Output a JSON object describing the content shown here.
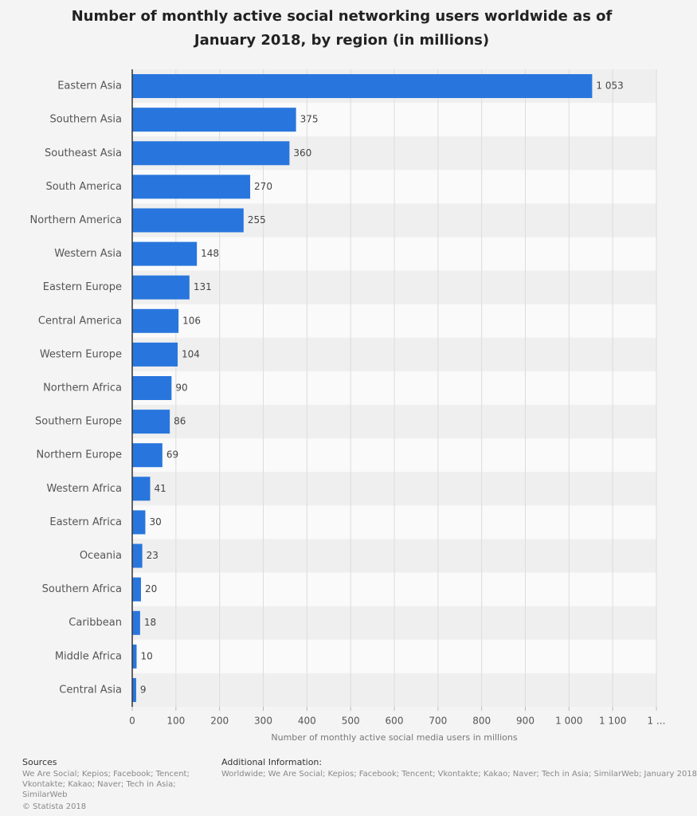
{
  "chart_data": {
    "type": "bar",
    "title": "Number of monthly active social networking users worldwide as of January 2018, by region (in millions)",
    "categories": [
      "Eastern Asia",
      "Southern Asia",
      "Southeast Asia",
      "South America",
      "Northern America",
      "Western Asia",
      "Eastern Europe",
      "Central America",
      "Western Europe",
      "Northern Africa",
      "Southern Europe",
      "Northern Europe",
      "Western Africa",
      "Eastern Africa",
      "Oceania",
      "Southern Africa",
      "Caribbean",
      "Middle Africa",
      "Central Asia"
    ],
    "values": [
      1053,
      375,
      360,
      270,
      255,
      148,
      131,
      106,
      104,
      90,
      86,
      69,
      41,
      30,
      23,
      20,
      18,
      10,
      9
    ],
    "value_labels": [
      "1 053",
      "375",
      "360",
      "270",
      "255",
      "148",
      "131",
      "106",
      "104",
      "90",
      "86",
      "69",
      "41",
      "30",
      "23",
      "20",
      "18",
      "10",
      "9"
    ],
    "color": "#2876dd",
    "xlim": [
      0,
      1200
    ],
    "xticks": [
      0,
      100,
      200,
      300,
      400,
      500,
      600,
      700,
      800,
      900,
      {
        "value": 1000,
        "label": "1 000"
      },
      {
        "value": 1100,
        "label": "1 100"
      },
      {
        "value": 1200,
        "label": "1 ..."
      }
    ],
    "grid": true,
    "x_label": "Number of monthly active social media users in millions",
    "sources_title": "Sources",
    "sources": "We Are Social; Kepios; Facebook; Tencent; Vkontakte; Kakao; Naver; Tech in Asia; SimilarWeb",
    "copyright": "© Statista 2018",
    "additional_info_title": "Additional Information:",
    "additional_info": "Worldwide; We Are Social; Kepios; Facebook; Tencent; Vkontakte; Kakao; Naver; Tech in Asia; SimilarWeb; January 2018"
  }
}
